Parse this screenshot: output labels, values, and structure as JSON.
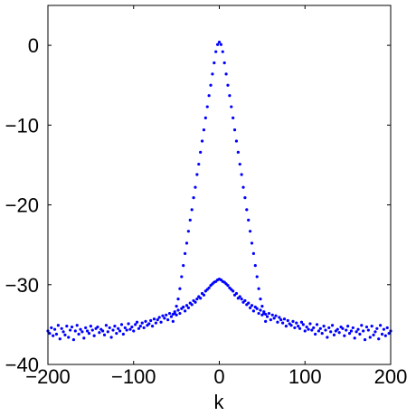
{
  "chart_data": {
    "type": "scatter",
    "title": "",
    "xlabel": "k",
    "ylabel": "",
    "xlim": [
      -200,
      200
    ],
    "ylim": [
      -40,
      5
    ],
    "xticks": [
      -200,
      -100,
      0,
      100,
      200
    ],
    "xtick_labels": [
      "−200",
      "−100",
      "0",
      "100",
      "200"
    ],
    "yticks": [
      0,
      -10,
      -20,
      -30,
      -40
    ],
    "ytick_labels": [
      "0",
      "−10",
      "−20",
      "−30",
      "−40"
    ],
    "grid": false,
    "legend": "none",
    "marker_color": "#0000ff",
    "series": [
      {
        "x": [
          -54,
          -52,
          -50,
          -48,
          -46,
          -44,
          -42,
          -40,
          -38,
          -36,
          -34,
          -32,
          -30,
          -28,
          -26,
          -24,
          -22,
          -20,
          -18,
          -16,
          -14,
          -12,
          -10,
          -8,
          -6,
          -4,
          -2,
          0,
          2,
          4,
          6,
          8,
          10,
          12,
          14,
          16,
          18,
          20,
          22,
          24,
          26,
          28,
          30,
          32,
          34,
          36,
          38,
          40,
          42,
          44,
          46,
          48,
          50,
          52,
          54
        ],
        "y": [
          -34.6,
          -33.6,
          -32.7,
          -31.8,
          -30.5,
          -29.0,
          -27.6,
          -26.1,
          -24.8,
          -23.3,
          -21.9,
          -20.6,
          -19.1,
          -17.8,
          -16.2,
          -14.9,
          -13.4,
          -12.0,
          -10.6,
          -9.1,
          -7.7,
          -6.3,
          -5.0,
          -3.6,
          -2.2,
          -0.8,
          0.1,
          0.4,
          0.1,
          -0.8,
          -2.2,
          -3.6,
          -5.0,
          -6.3,
          -7.7,
          -9.1,
          -10.6,
          -12.0,
          -13.4,
          -14.9,
          -16.2,
          -17.8,
          -19.1,
          -20.6,
          -21.9,
          -23.3,
          -24.8,
          -26.1,
          -27.6,
          -29.0,
          -30.5,
          -31.8,
          -32.7,
          -33.6,
          -34.6
        ]
      },
      {
        "x": [
          -200,
          -198,
          -196,
          -194,
          -192,
          -190,
          -188,
          -186,
          -184,
          -182,
          -180,
          -178,
          -176,
          -174,
          -172,
          -170,
          -168,
          -166,
          -164,
          -162,
          -160,
          -158,
          -156,
          -154,
          -152,
          -150,
          -148,
          -146,
          -144,
          -142,
          -140,
          -138,
          -136,
          -134,
          -132,
          -130,
          -128,
          -126,
          -124,
          -122,
          -120,
          -118,
          -116,
          -114,
          -112,
          -110,
          -108,
          -106,
          -104,
          -102,
          -100,
          -98,
          -96,
          -94,
          -92,
          -90,
          -88,
          -86,
          -84,
          -82,
          -80,
          -78,
          -76,
          -74,
          -72,
          -70,
          -68,
          -66,
          -64,
          -62,
          -60,
          -58,
          -56,
          -54,
          -52,
          -50,
          -48,
          -46,
          -44,
          -42,
          -40,
          -38,
          -36,
          -34,
          -32,
          -30,
          -28,
          -26,
          -24,
          -22,
          -20,
          -18,
          -16,
          -14,
          -12,
          -10,
          -8,
          -6,
          -4,
          -2,
          0,
          2,
          4,
          6,
          8,
          10,
          12,
          14,
          16,
          18,
          20,
          22,
          24,
          26,
          28,
          30,
          32,
          34,
          36,
          38,
          40,
          42,
          44,
          46,
          48,
          50,
          52,
          54,
          56,
          58,
          60,
          62,
          64,
          66,
          68,
          70,
          72,
          74,
          76,
          78,
          80,
          82,
          84,
          86,
          88,
          90,
          92,
          94,
          96,
          98,
          100,
          102,
          104,
          106,
          108,
          110,
          112,
          114,
          116,
          118,
          120,
          122,
          124,
          126,
          128,
          130,
          132,
          134,
          136,
          138,
          140,
          142,
          144,
          146,
          148,
          150,
          152,
          154,
          156,
          158,
          160,
          162,
          164,
          166,
          168,
          170,
          172,
          174,
          176,
          178,
          180,
          182,
          184,
          186,
          188,
          190,
          192,
          194,
          196,
          198,
          200
        ],
        "y": [
          -35.8,
          -36.1,
          -35.4,
          -36.4,
          -35.6,
          -36.2,
          -35.1,
          -36.8,
          -35.5,
          -35.9,
          -36.3,
          -35.2,
          -36.6,
          -35.7,
          -35.3,
          -36.9,
          -35.8,
          -35.1,
          -36.2,
          -35.6,
          -35.9,
          -36.7,
          -35.4,
          -35.8,
          -36.1,
          -35.2,
          -35.7,
          -36.4,
          -35.5,
          -35.3,
          -36.0,
          -35.6,
          -35.8,
          -36.3,
          -35.1,
          -35.9,
          -35.4,
          -36.6,
          -35.7,
          -35.2,
          -36.1,
          -35.5,
          -35.8,
          -35.0,
          -36.2,
          -35.4,
          -35.7,
          -34.9,
          -35.6,
          -35.3,
          -35.8,
          -35.0,
          -34.7,
          -35.5,
          -35.2,
          -34.8,
          -35.4,
          -34.6,
          -35.1,
          -34.9,
          -34.5,
          -35.2,
          -34.3,
          -34.8,
          -34.4,
          -34.1,
          -34.7,
          -33.9,
          -34.2,
          -33.8,
          -34.4,
          -33.6,
          -34.0,
          -33.7,
          -33.4,
          -33.8,
          -33.2,
          -33.6,
          -33.0,
          -32.8,
          -33.3,
          -32.6,
          -32.9,
          -32.3,
          -32.5,
          -32.0,
          -32.2,
          -31.8,
          -31.5,
          -31.7,
          -31.1,
          -31.3,
          -30.8,
          -30.6,
          -30.4,
          -30.1,
          -29.9,
          -29.7,
          -29.6,
          -29.4,
          -29.3,
          -29.4,
          -29.6,
          -29.7,
          -29.9,
          -30.1,
          -30.4,
          -30.6,
          -30.8,
          -31.3,
          -31.1,
          -31.7,
          -31.5,
          -31.8,
          -32.2,
          -32.0,
          -32.5,
          -32.3,
          -32.9,
          -32.6,
          -33.3,
          -32.8,
          -33.0,
          -33.6,
          -33.2,
          -33.8,
          -33.4,
          -33.7,
          -34.0,
          -33.6,
          -34.4,
          -33.8,
          -34.2,
          -33.9,
          -34.7,
          -34.1,
          -34.4,
          -34.8,
          -34.3,
          -35.2,
          -34.5,
          -34.9,
          -35.1,
          -34.6,
          -35.4,
          -34.8,
          -35.2,
          -35.5,
          -34.7,
          -35.0,
          -35.8,
          -35.3,
          -35.6,
          -34.9,
          -35.7,
          -35.4,
          -36.2,
          -35.0,
          -35.8,
          -35.5,
          -36.1,
          -35.2,
          -35.7,
          -36.6,
          -35.4,
          -35.9,
          -35.1,
          -36.3,
          -35.8,
          -35.6,
          -36.0,
          -35.3,
          -35.5,
          -36.4,
          -35.7,
          -35.2,
          -36.1,
          -35.8,
          -35.4,
          -36.7,
          -35.9,
          -35.6,
          -36.2,
          -35.1,
          -35.8,
          -36.9,
          -35.3,
          -35.7,
          -36.6,
          -35.2,
          -36.3,
          -35.9,
          -35.5,
          -36.8,
          -35.1,
          -36.2,
          -35.6,
          -36.4,
          -35.4,
          -36.1,
          -35.8
        ]
      }
    ]
  }
}
